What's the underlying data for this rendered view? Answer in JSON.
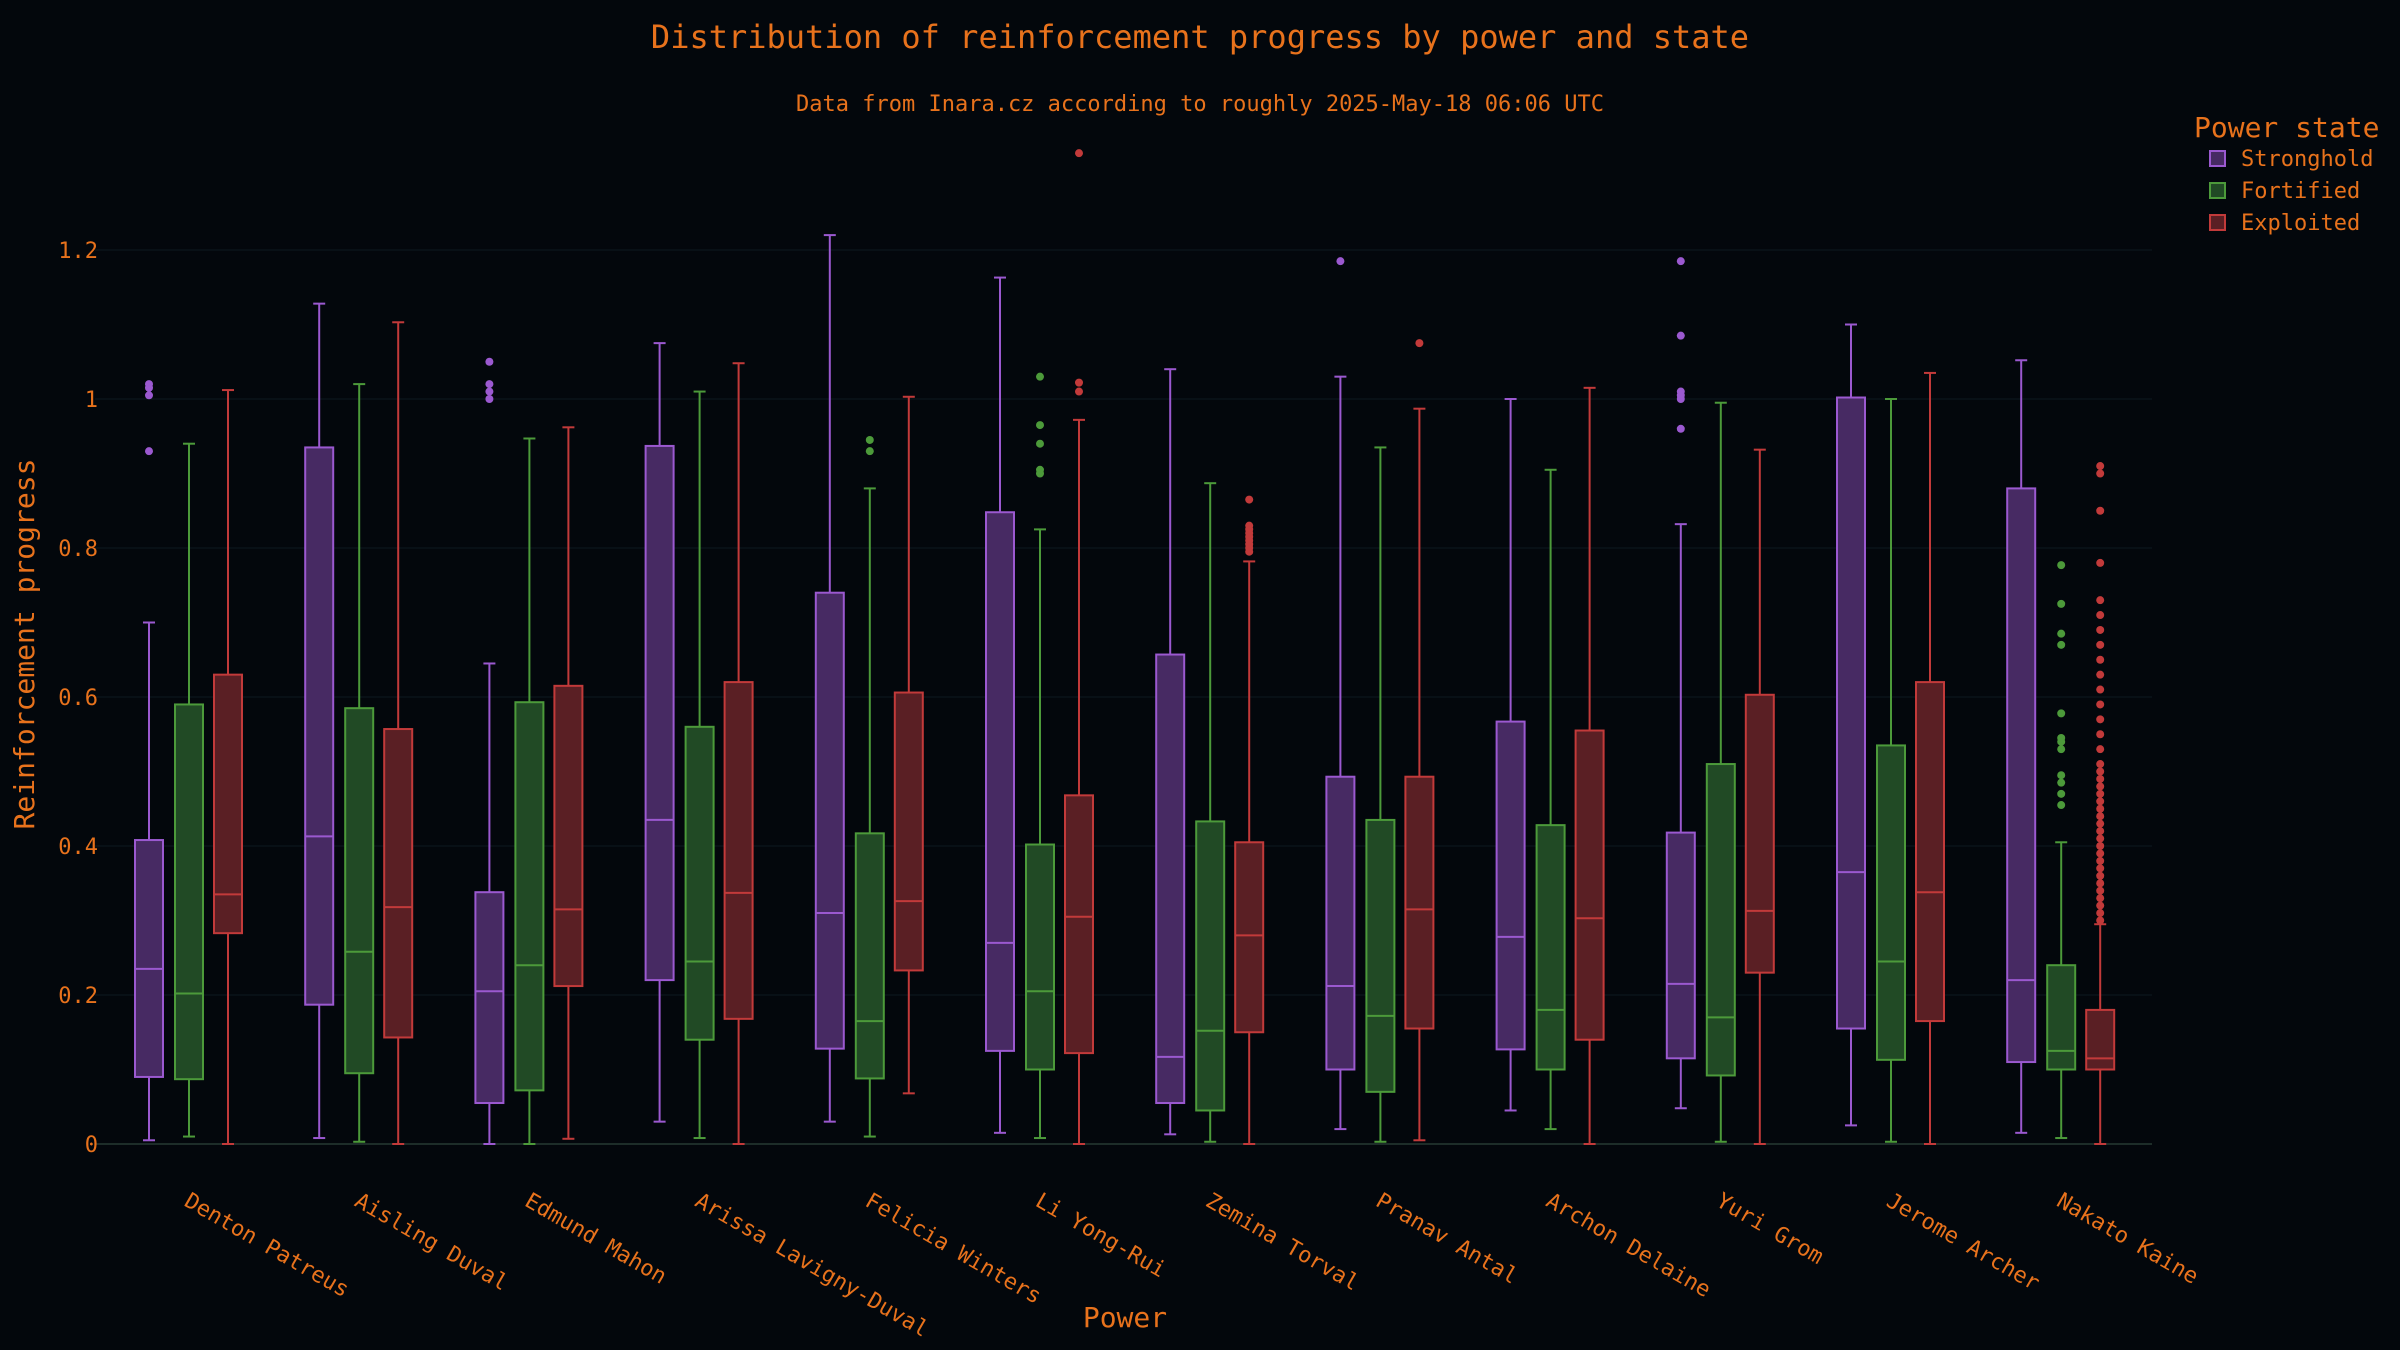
{
  "chart_data": {
    "type": "box",
    "title": "Distribution of reinforcement progress by power and state",
    "subtitle": "Data from Inara.cz according to roughly 2025-May-18 06:06 UTC",
    "xlabel": "Power",
    "ylabel": "Reinforcement progress",
    "ylim": [
      0,
      1.3
    ],
    "yticks": [
      0,
      0.2,
      0.4,
      0.6,
      0.8,
      1,
      1.2
    ],
    "ytick_labels": [
      "0",
      "0.2",
      "0.4",
      "0.6",
      "0.8",
      "1",
      "1.2"
    ],
    "grid": true,
    "legend_position": "top-right",
    "legend_title": "Power state",
    "categories": [
      "Denton Patreus",
      "Aisling Duval",
      "Edmund Mahon",
      "Arissa Lavigny-Duval",
      "Felicia Winters",
      "Li Yong-Rui",
      "Zemina Torval",
      "Pranav Antal",
      "Archon Delaine",
      "Yuri Grom",
      "Jerome Archer",
      "Nakato Kaine"
    ],
    "series": [
      {
        "name": "Stronghold",
        "color": "#9b59d0",
        "fill": "#472a63",
        "boxes": [
          {
            "min": 0.005,
            "q1": 0.09,
            "median": 0.235,
            "q3": 0.408,
            "max": 0.7,
            "outliers": [
              0.93,
              1.005,
              1.015,
              1.02
            ]
          },
          {
            "min": 0.008,
            "q1": 0.187,
            "median": 0.413,
            "q3": 0.935,
            "max": 1.128,
            "outliers": []
          },
          {
            "min": 0.0,
            "q1": 0.055,
            "median": 0.205,
            "q3": 0.338,
            "max": 0.645,
            "outliers": [
              1.0,
              1.01,
              1.02,
              1.05
            ]
          },
          {
            "min": 0.03,
            "q1": 0.22,
            "median": 0.435,
            "q3": 0.937,
            "max": 1.075,
            "outliers": []
          },
          {
            "min": 0.03,
            "q1": 0.128,
            "median": 0.31,
            "q3": 0.74,
            "max": 1.22,
            "outliers": []
          },
          {
            "min": 0.015,
            "q1": 0.125,
            "median": 0.27,
            "q3": 0.848,
            "max": 1.163,
            "outliers": []
          },
          {
            "min": 0.013,
            "q1": 0.055,
            "median": 0.117,
            "q3": 0.657,
            "max": 1.04,
            "outliers": []
          },
          {
            "min": 0.02,
            "q1": 0.1,
            "median": 0.212,
            "q3": 0.493,
            "max": 1.03,
            "outliers": [
              1.185
            ]
          },
          {
            "min": 0.045,
            "q1": 0.127,
            "median": 0.278,
            "q3": 0.567,
            "max": 1.0,
            "outliers": []
          },
          {
            "min": 0.048,
            "q1": 0.115,
            "median": 0.215,
            "q3": 0.418,
            "max": 0.832,
            "outliers": [
              0.96,
              1.0,
              1.005,
              1.01,
              1.085,
              1.185
            ]
          },
          {
            "min": 0.025,
            "q1": 0.155,
            "median": 0.365,
            "q3": 1.002,
            "max": 1.1,
            "outliers": []
          },
          {
            "min": 0.015,
            "q1": 0.11,
            "median": 0.22,
            "q3": 0.88,
            "max": 1.052,
            "outliers": []
          }
        ]
      },
      {
        "name": "Fortified",
        "color": "#4c9a3a",
        "fill": "#214a25",
        "boxes": [
          {
            "min": 0.01,
            "q1": 0.087,
            "median": 0.202,
            "q3": 0.59,
            "max": 0.94,
            "outliers": []
          },
          {
            "min": 0.003,
            "q1": 0.095,
            "median": 0.258,
            "q3": 0.585,
            "max": 1.02,
            "outliers": []
          },
          {
            "min": 0.0,
            "q1": 0.072,
            "median": 0.24,
            "q3": 0.593,
            "max": 0.947,
            "outliers": []
          },
          {
            "min": 0.008,
            "q1": 0.14,
            "median": 0.245,
            "q3": 0.56,
            "max": 1.01,
            "outliers": []
          },
          {
            "min": 0.01,
            "q1": 0.088,
            "median": 0.165,
            "q3": 0.417,
            "max": 0.88,
            "outliers": [
              0.93,
              0.945
            ]
          },
          {
            "min": 0.008,
            "q1": 0.1,
            "median": 0.205,
            "q3": 0.402,
            "max": 0.825,
            "outliers": [
              0.9,
              0.905,
              0.94,
              0.965,
              1.03
            ]
          },
          {
            "min": 0.003,
            "q1": 0.045,
            "median": 0.152,
            "q3": 0.433,
            "max": 0.887,
            "outliers": []
          },
          {
            "min": 0.003,
            "q1": 0.07,
            "median": 0.172,
            "q3": 0.435,
            "max": 0.935,
            "outliers": []
          },
          {
            "min": 0.02,
            "q1": 0.1,
            "median": 0.18,
            "q3": 0.428,
            "max": 0.905,
            "outliers": []
          },
          {
            "min": 0.003,
            "q1": 0.092,
            "median": 0.17,
            "q3": 0.51,
            "max": 0.995,
            "outliers": []
          },
          {
            "min": 0.003,
            "q1": 0.113,
            "median": 0.245,
            "q3": 0.535,
            "max": 1.0,
            "outliers": []
          },
          {
            "min": 0.008,
            "q1": 0.1,
            "median": 0.125,
            "q3": 0.24,
            "max": 0.405,
            "outliers": [
              0.455,
              0.47,
              0.485,
              0.495,
              0.53,
              0.54,
              0.545,
              0.578,
              0.67,
              0.685,
              0.725,
              0.777
            ]
          }
        ]
      },
      {
        "name": "Exploited",
        "color": "#c23a3a",
        "fill": "#5a1f24",
        "boxes": [
          {
            "min": 0.0,
            "q1": 0.283,
            "median": 0.335,
            "q3": 0.63,
            "max": 1.012,
            "outliers": []
          },
          {
            "min": 0.0,
            "q1": 0.143,
            "median": 0.318,
            "q3": 0.557,
            "max": 1.103,
            "outliers": []
          },
          {
            "min": 0.007,
            "q1": 0.212,
            "median": 0.315,
            "q3": 0.615,
            "max": 0.962,
            "outliers": []
          },
          {
            "min": 0.0,
            "q1": 0.168,
            "median": 0.337,
            "q3": 0.62,
            "max": 1.048,
            "outliers": []
          },
          {
            "min": 0.068,
            "q1": 0.233,
            "median": 0.326,
            "q3": 0.606,
            "max": 1.003,
            "outliers": []
          },
          {
            "min": 0.0,
            "q1": 0.122,
            "median": 0.305,
            "q3": 0.468,
            "max": 0.972,
            "outliers": [
              1.01,
              1.022,
              1.33
            ]
          },
          {
            "min": 0.0,
            "q1": 0.15,
            "median": 0.28,
            "q3": 0.405,
            "max": 0.782,
            "outliers": [
              0.795,
              0.8,
              0.805,
              0.81,
              0.815,
              0.82,
              0.825,
              0.83,
              0.865
            ]
          },
          {
            "min": 0.005,
            "q1": 0.155,
            "median": 0.315,
            "q3": 0.493,
            "max": 0.987,
            "outliers": [
              1.075
            ]
          },
          {
            "min": 0.0,
            "q1": 0.14,
            "median": 0.303,
            "q3": 0.555,
            "max": 1.015,
            "outliers": []
          },
          {
            "min": 0.0,
            "q1": 0.23,
            "median": 0.313,
            "q3": 0.603,
            "max": 0.932,
            "outliers": []
          },
          {
            "min": 0.0,
            "q1": 0.165,
            "median": 0.338,
            "q3": 0.62,
            "max": 1.035,
            "outliers": []
          },
          {
            "min": 0.0,
            "q1": 0.1,
            "median": 0.115,
            "q3": 0.18,
            "max": 0.295,
            "outliers": [
              0.3,
              0.31,
              0.32,
              0.33,
              0.34,
              0.35,
              0.36,
              0.37,
              0.38,
              0.39,
              0.4,
              0.41,
              0.42,
              0.43,
              0.44,
              0.45,
              0.46,
              0.47,
              0.48,
              0.49,
              0.5,
              0.51,
              0.53,
              0.55,
              0.57,
              0.59,
              0.61,
              0.63,
              0.65,
              0.67,
              0.69,
              0.71,
              0.73,
              0.78,
              0.85,
              0.9,
              0.91
            ]
          }
        ]
      }
    ]
  }
}
